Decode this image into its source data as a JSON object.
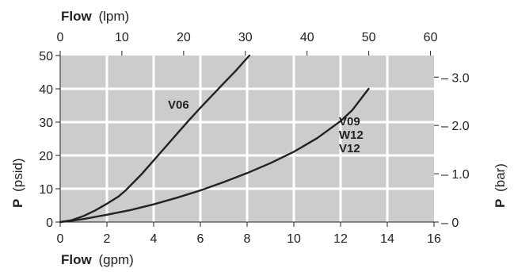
{
  "chart_data": {
    "type": "line",
    "x_label_bold": "Flow",
    "x_label_unit": "(gpm)",
    "x_ticks": [
      "0",
      "2",
      "4",
      "6",
      "8",
      "10",
      "12",
      "14",
      "16"
    ],
    "xlim": [
      0,
      16
    ],
    "top_label_bold": "Flow",
    "top_label_unit": "(lpm)",
    "top_ticks": [
      "0",
      "10",
      "20",
      "30",
      "40",
      "50",
      "60"
    ],
    "y_label_bold": "P",
    "y_label_unit": "(psid)",
    "y_ticks": [
      "0",
      "10",
      "20",
      "30",
      "40",
      "50"
    ],
    "ylim": [
      0,
      50
    ],
    "right_label_bold": "P",
    "right_label_unit": "(bar)",
    "right_ticks": [
      "0",
      "1.0",
      "2.0",
      "3.0"
    ],
    "grid": true,
    "colors": {
      "plot_background": "#cccccc",
      "grid": "#ffffff",
      "line": "#222222"
    },
    "series": [
      {
        "name": "V06",
        "x": [
          0,
          0.5,
          1.0,
          1.5,
          2.0,
          2.5,
          2.8,
          3.5,
          4.0,
          4.5,
          5.0,
          5.5,
          6.0,
          6.5,
          7.0,
          7.5,
          8.1
        ],
        "y": [
          0,
          0.6,
          1.8,
          3.5,
          5.5,
          7.7,
          9.5,
          14.5,
          18.5,
          22.5,
          26.5,
          30.5,
          34.3,
          38.0,
          41.7,
          45.3,
          50.0
        ]
      },
      {
        "name": "V09 W12 V12",
        "x": [
          0,
          0.5,
          1,
          2,
          3,
          4,
          5,
          6,
          7,
          8,
          9,
          10,
          11,
          12,
          12.5,
          13.2
        ],
        "y": [
          0,
          0.4,
          0.9,
          2.2,
          3.6,
          5.3,
          7.3,
          9.5,
          12.0,
          14.7,
          17.7,
          21.1,
          25.2,
          30.3,
          33.6,
          40.0
        ]
      }
    ],
    "annotations": {
      "curve1": "V06",
      "curve2_line1": "V09",
      "curve2_line2": "W12",
      "curve2_line3": "V12"
    }
  }
}
